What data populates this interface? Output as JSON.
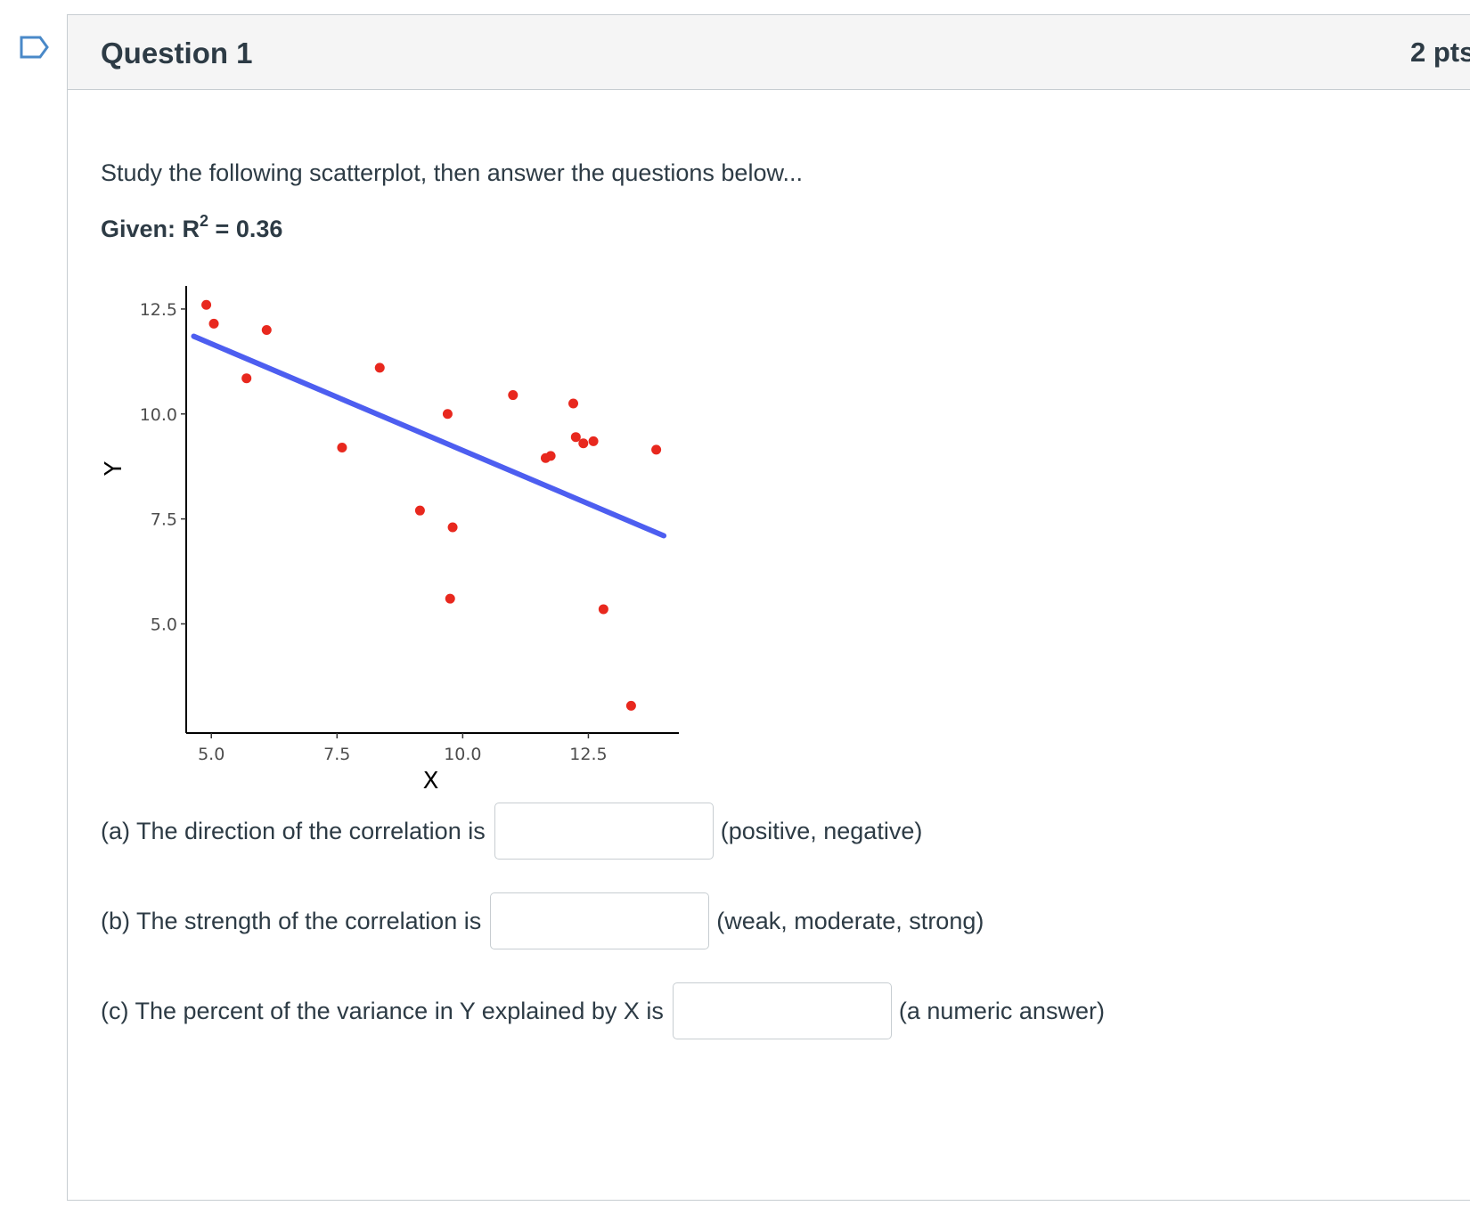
{
  "question": {
    "title": "Question 1",
    "points": "2 pts"
  },
  "intro_text": "Study the following scatterplot, then answer the questions below...",
  "given": {
    "prefix": "Given: R",
    "exponent": "2",
    "suffix": " = 0.36"
  },
  "questions": [
    {
      "label": "(a) The direction of the correlation is",
      "hint": "(positive, negative)",
      "value": ""
    },
    {
      "label": "(b) The strength of the correlation is",
      "hint": "(weak, moderate, strong)",
      "value": ""
    },
    {
      "label": "(c) The percent of the variance in Y explained by X is",
      "hint": "(a numeric answer)",
      "value": ""
    }
  ],
  "colors": {
    "points": "#e8281e",
    "fit_line": "#4d5ef0",
    "flag": "#4a89c8"
  },
  "chart_data": {
    "type": "scatter",
    "xlabel": "X",
    "ylabel": "Y",
    "xlim": [
      4.5,
      14.3
    ],
    "ylim": [
      2.4,
      13.05
    ],
    "xticks": [
      5.0,
      7.5,
      10.0,
      12.5
    ],
    "xtick_labels": [
      "5.0",
      "7.5",
      "10.0",
      "12.5"
    ],
    "yticks": [
      5.0,
      7.5,
      10.0,
      12.5
    ],
    "ytick_labels": [
      "5.0",
      "7.5",
      "10.0",
      "12.5"
    ],
    "points": [
      {
        "x": 4.9,
        "y": 12.6
      },
      {
        "x": 5.05,
        "y": 12.15
      },
      {
        "x": 5.7,
        "y": 10.85
      },
      {
        "x": 6.1,
        "y": 12.0
      },
      {
        "x": 7.6,
        "y": 9.2
      },
      {
        "x": 8.35,
        "y": 11.1
      },
      {
        "x": 9.15,
        "y": 7.7
      },
      {
        "x": 9.7,
        "y": 10.0
      },
      {
        "x": 9.75,
        "y": 5.6
      },
      {
        "x": 9.8,
        "y": 7.3
      },
      {
        "x": 11.0,
        "y": 10.45
      },
      {
        "x": 11.65,
        "y": 8.95
      },
      {
        "x": 11.75,
        "y": 9.0
      },
      {
        "x": 12.2,
        "y": 10.25
      },
      {
        "x": 12.25,
        "y": 9.45
      },
      {
        "x": 12.4,
        "y": 9.3
      },
      {
        "x": 12.6,
        "y": 9.35
      },
      {
        "x": 12.8,
        "y": 5.35
      },
      {
        "x": 13.35,
        "y": 3.05
      },
      {
        "x": 13.85,
        "y": 9.15
      }
    ],
    "fit_line": {
      "x": [
        4.65,
        14.0
      ],
      "y": [
        11.85,
        7.1
      ]
    },
    "grid": false,
    "legend": "none"
  }
}
